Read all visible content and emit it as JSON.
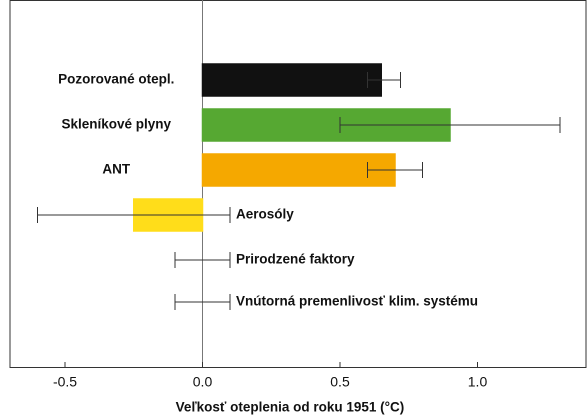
{
  "chart_data": {
    "type": "hbar_error",
    "xlabel": "Veľkosť oteplenia od roku 1951 (°C)",
    "categories": [
      "Pozorované otepl.",
      "Skleníkové plyny",
      "ANT",
      "Aerosóly",
      "Prirodzené faktory",
      "Vnútorná premenlivosť klim. systému"
    ],
    "values": [
      0.65,
      0.9,
      0.7,
      -0.25,
      0,
      0
    ],
    "err_lo": [
      0.6,
      0.5,
      0.6,
      -0.6,
      -0.1,
      -0.1
    ],
    "err_hi": [
      0.72,
      1.3,
      0.8,
      0.1,
      0.1,
      0.1
    ],
    "colors": [
      "#111111",
      "#56a832",
      "#f5a800",
      "#ffdd1a",
      "#5b9bd5",
      null
    ],
    "xlim": [
      -0.7,
      1.4
    ],
    "xticks": [
      -0.5,
      {
        "value": 0,
        "label": "0.0"
      },
      0.5,
      {
        "value": 1,
        "label": "1.0"
      }
    ]
  }
}
